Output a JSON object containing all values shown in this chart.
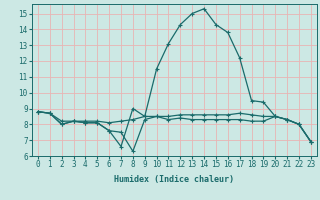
{
  "bg_color": "#cce8e4",
  "grid_color": "#e8b4b4",
  "line_color": "#1a6b6b",
  "marker": "+",
  "xlabel": "Humidex (Indice chaleur)",
  "ylim": [
    6,
    15.6
  ],
  "xlim": [
    -0.5,
    23.5
  ],
  "yticks": [
    6,
    7,
    8,
    9,
    10,
    11,
    12,
    13,
    14,
    15
  ],
  "xticks": [
    0,
    1,
    2,
    3,
    4,
    5,
    6,
    7,
    8,
    9,
    10,
    11,
    12,
    13,
    14,
    15,
    16,
    17,
    18,
    19,
    20,
    21,
    22,
    23
  ],
  "line1_x": [
    0,
    1,
    2,
    3,
    4,
    5,
    6,
    7,
    8,
    9,
    10,
    11,
    12,
    13,
    14,
    15,
    16,
    17,
    18,
    19,
    20,
    21,
    22,
    23
  ],
  "line1_y": [
    8.8,
    8.7,
    8.0,
    8.2,
    8.1,
    8.1,
    7.6,
    7.5,
    6.3,
    8.3,
    8.5,
    8.3,
    8.4,
    8.3,
    8.3,
    8.3,
    8.3,
    8.3,
    8.2,
    8.2,
    8.5,
    8.3,
    8.0,
    6.9
  ],
  "line2_x": [
    0,
    1,
    2,
    3,
    4,
    5,
    6,
    7,
    8,
    9,
    10,
    11,
    12,
    13,
    14,
    15,
    16,
    17,
    18,
    19,
    20,
    21,
    22,
    23
  ],
  "line2_y": [
    8.8,
    8.7,
    8.0,
    8.2,
    8.1,
    8.1,
    7.6,
    6.6,
    9.0,
    8.5,
    8.5,
    8.5,
    8.6,
    8.6,
    8.6,
    8.6,
    8.6,
    8.7,
    8.6,
    8.5,
    8.5,
    8.3,
    8.0,
    6.9
  ],
  "line3_x": [
    0,
    1,
    2,
    3,
    4,
    5,
    6,
    7,
    8,
    9,
    10,
    11,
    12,
    13,
    14,
    15,
    16,
    17,
    18,
    19,
    20,
    21,
    22,
    23
  ],
  "line3_y": [
    8.8,
    8.7,
    8.2,
    8.2,
    8.2,
    8.2,
    8.1,
    8.2,
    8.3,
    8.5,
    11.5,
    13.1,
    14.3,
    15.0,
    15.3,
    14.3,
    13.8,
    12.2,
    9.5,
    9.4,
    8.5,
    8.3,
    8.0,
    6.9
  ],
  "xlabel_fontsize": 6.0,
  "tick_fontsize": 5.5,
  "linewidth": 0.9,
  "markersize": 3.0
}
